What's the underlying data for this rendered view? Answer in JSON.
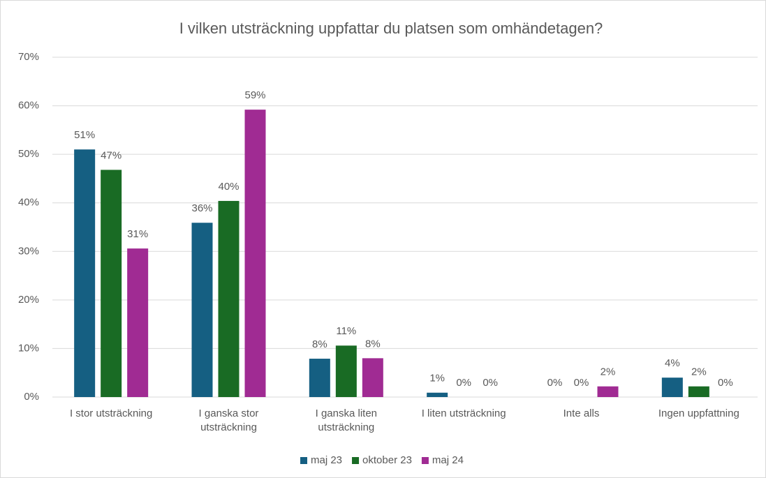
{
  "chart_data": {
    "type": "bar",
    "title": "I vilken utsträckning uppfattar du platsen som omhändetagen?",
    "categories": [
      "I stor utsträckning",
      "I ganska stor utsträckning",
      "I ganska liten utsträckning",
      "I liten utsträckning",
      "Inte alls",
      "Ingen uppfattning"
    ],
    "series": [
      {
        "name": "maj 23",
        "color": "#155f82",
        "values": [
          51.0,
          35.9,
          7.9,
          0.9,
          0,
          4.0
        ],
        "value_labels": [
          "51%",
          "36%",
          "8%",
          "1%",
          "0%",
          "4%"
        ]
      },
      {
        "name": "oktober 23",
        "color": "#196b24",
        "values": [
          46.8,
          40.4,
          10.6,
          0,
          0,
          2.2
        ],
        "value_labels": [
          "47%",
          "40%",
          "11%",
          "0%",
          "0%",
          "2%"
        ]
      },
      {
        "name": "maj 24",
        "color": "#a02b93",
        "values": [
          30.6,
          59.2,
          8.0,
          0,
          2.2,
          0
        ],
        "value_labels": [
          "31%",
          "59%",
          "8%",
          "0%",
          "2%",
          "0%"
        ]
      }
    ],
    "ylim": [
      0,
      70
    ],
    "yticks": [
      {
        "value": 0,
        "label": "0%"
      },
      {
        "value": 10,
        "label": "10%"
      },
      {
        "value": 20,
        "label": "20%"
      },
      {
        "value": 30,
        "label": "30%"
      },
      {
        "value": 40,
        "label": "40%"
      },
      {
        "value": 50,
        "label": "50%"
      },
      {
        "value": 60,
        "label": "60%"
      },
      {
        "value": 70,
        "label": "70%"
      }
    ],
    "grid": true,
    "legend": "bottom"
  }
}
